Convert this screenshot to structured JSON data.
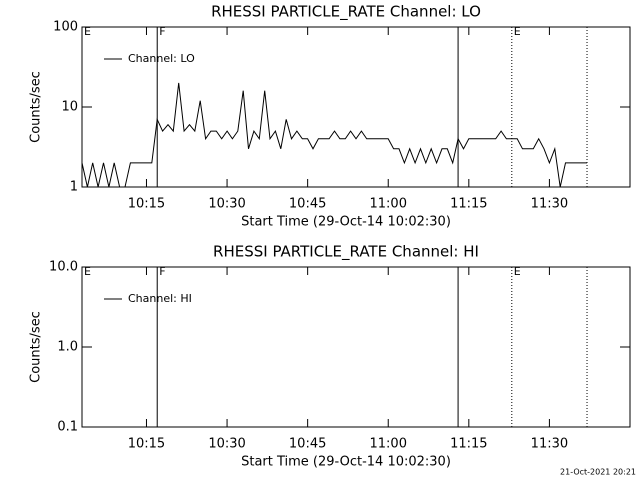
{
  "chart_data": [
    {
      "type": "line",
      "title": "RHESSI PARTICLE_RATE Channel: LO",
      "xlabel": "Start Time (29-Oct-14 10:02:30)",
      "ylabel": "Counts/sec",
      "log_y": true,
      "ylim": [
        1,
        100
      ],
      "yticks": [
        1,
        10,
        100
      ],
      "xlim": [
        "10:03",
        "11:45"
      ],
      "xticks": [
        "10:15",
        "10:30",
        "10:45",
        "11:00",
        "11:15",
        "11:30"
      ],
      "legend": "upper left",
      "markers": [
        {
          "x": "10:03",
          "label": "E",
          "style": "none"
        },
        {
          "x": "10:17",
          "label": "F",
          "style": "solid"
        },
        {
          "x": "11:13",
          "style": "solid"
        },
        {
          "x": "11:23",
          "label": "E",
          "style": "dotted"
        },
        {
          "x": "11:37",
          "style": "dotted"
        }
      ],
      "series": [
        {
          "name": "Channel: LO",
          "color": "#000000",
          "x": [
            "10:03",
            "10:04",
            "10:05",
            "10:06",
            "10:07",
            "10:08",
            "10:09",
            "10:10",
            "10:11",
            "10:12",
            "10:13",
            "10:14",
            "10:15",
            "10:16",
            "10:17",
            "10:18",
            "10:19",
            "10:20",
            "10:21",
            "10:22",
            "10:23",
            "10:24",
            "10:25",
            "10:26",
            "10:27",
            "10:28",
            "10:29",
            "10:30",
            "10:31",
            "10:32",
            "10:33",
            "10:34",
            "10:35",
            "10:36",
            "10:37",
            "10:38",
            "10:39",
            "10:40",
            "10:41",
            "10:42",
            "10:43",
            "10:44",
            "10:45",
            "10:46",
            "10:47",
            "10:48",
            "10:49",
            "10:50",
            "10:51",
            "10:52",
            "10:53",
            "10:54",
            "10:55",
            "10:56",
            "10:57",
            "10:58",
            "10:59",
            "11:00",
            "11:01",
            "11:02",
            "11:03",
            "11:04",
            "11:05",
            "11:06",
            "11:07",
            "11:08",
            "11:09",
            "11:10",
            "11:11",
            "11:12",
            "11:13",
            "11:14",
            "11:15",
            "11:16",
            "11:17",
            "11:18",
            "11:19",
            "11:20",
            "11:21",
            "11:22",
            "11:23",
            "11:24",
            "11:25",
            "11:26",
            "11:27",
            "11:28",
            "11:29",
            "11:30",
            "11:31",
            "11:32",
            "11:33",
            "11:34",
            "11:35",
            "11:36",
            "11:37"
          ],
          "values": [
            2,
            1,
            2,
            1,
            2,
            1,
            2,
            1,
            1,
            2,
            2,
            2,
            2,
            2,
            7,
            5,
            6,
            5,
            20,
            5,
            6,
            5,
            12,
            4,
            5,
            5,
            4,
            5,
            4,
            5,
            16,
            3,
            5,
            4,
            16,
            4,
            5,
            3,
            7,
            4,
            5,
            4,
            4,
            3,
            4,
            4,
            4,
            5,
            4,
            4,
            5,
            4,
            5,
            4,
            4,
            4,
            4,
            4,
            3,
            3,
            2,
            3,
            2,
            3,
            2,
            3,
            2,
            3,
            3,
            2,
            4,
            3,
            4,
            4,
            4,
            4,
            4,
            4,
            5,
            4,
            4,
            4,
            3,
            3,
            3,
            4,
            3,
            2,
            3,
            1,
            2,
            2,
            2,
            2,
            2
          ]
        }
      ]
    },
    {
      "type": "line",
      "title": "RHESSI PARTICLE_RATE Channel: HI",
      "xlabel": "Start Time (29-Oct-14 10:02:30)",
      "ylabel": "Counts/sec",
      "log_y": true,
      "ylim": [
        0.1,
        10
      ],
      "yticks": [
        0.1,
        {
          "value": 1,
          "label": "1.0"
        },
        {
          "value": 10,
          "label": "10.0"
        }
      ],
      "xlim": [
        "10:03",
        "11:45"
      ],
      "xticks": [
        "10:15",
        "10:30",
        "10:45",
        "11:00",
        "11:15",
        "11:30"
      ],
      "legend": "upper left",
      "markers": [
        {
          "x": "10:03",
          "label": "E",
          "style": "none"
        },
        {
          "x": "10:17",
          "label": "F",
          "style": "solid"
        },
        {
          "x": "11:13",
          "style": "solid"
        },
        {
          "x": "11:23",
          "label": "E",
          "style": "dotted"
        },
        {
          "x": "11:37",
          "style": "dotted"
        }
      ],
      "series": [
        {
          "name": "Channel: HI",
          "color": "#000000",
          "x": [],
          "values": []
        }
      ]
    }
  ],
  "footer": "21-Oct-2021 20:21"
}
